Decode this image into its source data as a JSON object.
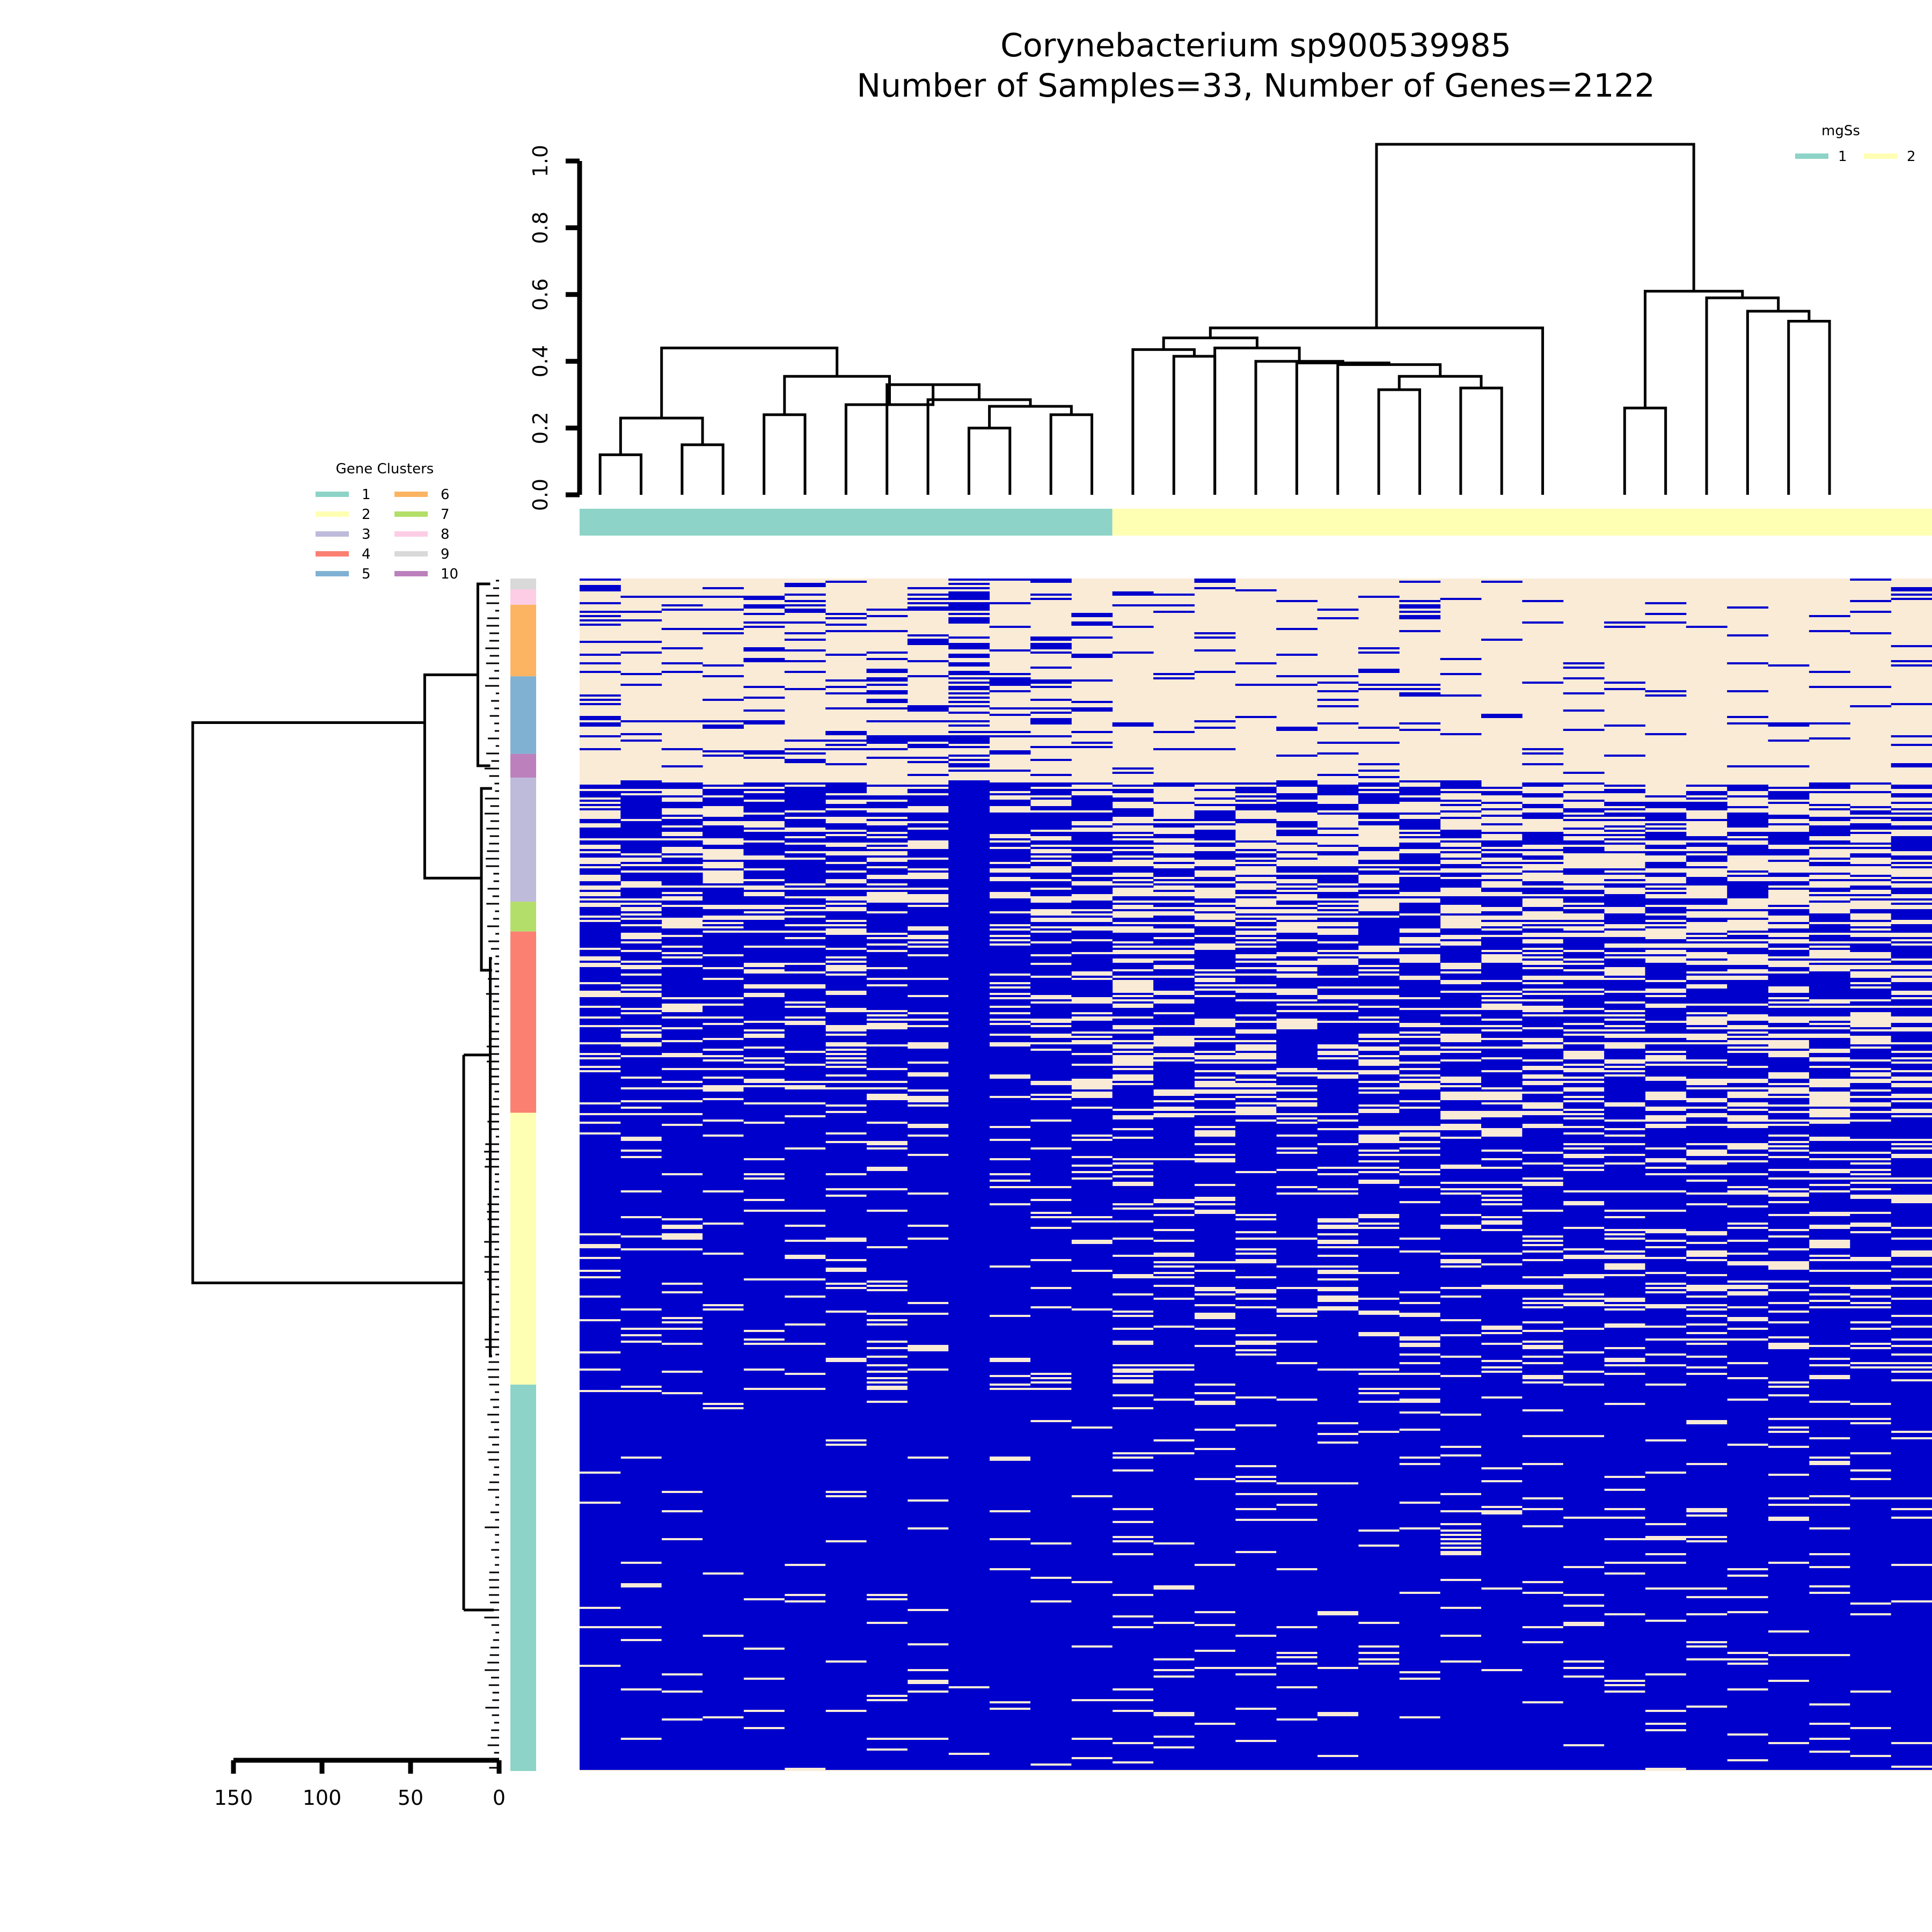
{
  "chart_data": {
    "type": "heatmap",
    "title": "Corynebacterium sp900539985",
    "subtitle": "Number of Samples=33, Number of Genes=2122",
    "colors": {
      "present": "#0000CD",
      "absent": "#FAEBD7",
      "line": "#000000"
    },
    "sample_dendrogram": {
      "axis_ticks": [
        "0.0",
        "0.2",
        "0.4",
        "0.6",
        "0.8",
        "1.0"
      ],
      "ylim": [
        0,
        1
      ],
      "root_height": 1.05,
      "nodes": [
        {
          "l": 0,
          "r": 1,
          "h": 0.12
        },
        {
          "l": 2,
          "r": 3,
          "h": 0.15
        },
        {
          "l": 33,
          "r": 34,
          "h": 0.23
        },
        {
          "l": 4,
          "r": 5,
          "h": 0.24
        },
        {
          "l": 9,
          "r": 10,
          "h": 0.2
        },
        {
          "l": 11,
          "r": 12,
          "h": 0.24
        },
        {
          "l": 37,
          "r": 38,
          "h": 0.265
        },
        {
          "l": 8,
          "r": 39,
          "h": 0.285
        },
        {
          "l": 7,
          "r": 40,
          "h": 0.33
        },
        {
          "l": 6,
          "r": 41,
          "h": 0.27
        },
        {
          "l": 36,
          "r": 42,
          "h": 0.355
        },
        {
          "l": 35,
          "r": 43,
          "h": 0.44
        },
        {
          "l": 19,
          "r": 20,
          "h": 0.315
        },
        {
          "l": 21,
          "r": 22,
          "h": 0.32
        },
        {
          "l": 45,
          "r": 46,
          "h": 0.355
        },
        {
          "l": 47,
          "r": 18,
          "h": 0.39
        },
        {
          "l": 48,
          "r": 17,
          "h": 0.395
        },
        {
          "l": 49,
          "r": 16,
          "h": 0.4
        },
        {
          "l": 15,
          "r": 50,
          "h": 0.44
        },
        {
          "l": 14,
          "r": 15.5,
          "h": 0.415
        },
        {
          "l": 13,
          "r": 52,
          "h": 0.435
        },
        {
          "l": 53,
          "r": 51,
          "h": 0.47
        },
        {
          "l": 54,
          "r": 23,
          "h": 0.5
        },
        {
          "l": 25,
          "r": 26,
          "h": 0.26
        },
        {
          "l": 29,
          "r": 30,
          "h": 0.52
        },
        {
          "l": 28,
          "r": 57,
          "h": 0.55
        },
        {
          "l": 27,
          "r": 58,
          "h": 0.59
        },
        {
          "l": 56,
          "r": 59,
          "h": 0.61
        },
        {
          "l": 55,
          "r": 60,
          "h": 1.05
        }
      ],
      "groups": [
        {
          "cluster": 1,
          "start": 0,
          "end": 13
        },
        {
          "cluster": 2,
          "start": 13,
          "end": 33
        }
      ]
    },
    "sample_legend": {
      "title": "mgSs",
      "labels": [
        "1",
        "2"
      ],
      "colors": [
        "#8DD3C7",
        "#FFFFB3"
      ]
    },
    "gene_dendrogram": {
      "axis_ticks": [
        "150",
        "100",
        "50",
        "0"
      ],
      "xlim": [
        0,
        150
      ],
      "root_height": 173,
      "main_split": [
        {
          "label": "top",
          "height": 42
        },
        {
          "label": "bottom",
          "height": 20
        }
      ]
    },
    "gene_legend": {
      "title": "Gene Clusters",
      "labels": [
        "1",
        "2",
        "3",
        "4",
        "5",
        "6",
        "7",
        "8",
        "9",
        "10"
      ],
      "colors": [
        "#8DD3C7",
        "#FFFFB3",
        "#BEBADA",
        "#FB8072",
        "#80B1D3",
        "#FDB462",
        "#B3DE69",
        "#FCCDE5",
        "#D9D9D9",
        "#BC80BD"
      ]
    },
    "gene_clusters": [
      {
        "cluster": 9,
        "fraction": 0.009
      },
      {
        "cluster": 8,
        "fraction": 0.013
      },
      {
        "cluster": 6,
        "fraction": 0.06
      },
      {
        "cluster": 5,
        "fraction": 0.065
      },
      {
        "cluster": 10,
        "fraction": 0.02
      },
      {
        "cluster": 3,
        "fraction": 0.104
      },
      {
        "cluster": 7,
        "fraction": 0.025
      },
      {
        "cluster": 4,
        "fraction": 0.152
      },
      {
        "cluster": 2,
        "fraction": 0.228
      },
      {
        "cluster": 1,
        "fraction": 0.324
      }
    ],
    "row_band_presence": [
      {
        "start": 0.0,
        "end": 0.17,
        "p": 0.15
      },
      {
        "start": 0.17,
        "end": 0.3,
        "p": 0.55
      },
      {
        "start": 0.3,
        "end": 0.45,
        "p": 0.7
      },
      {
        "start": 0.45,
        "end": 0.68,
        "p": 0.85
      },
      {
        "start": 0.68,
        "end": 1.0,
        "p": 0.95
      }
    ],
    "sample_presence_bias": [
      0.1,
      0.05,
      0.05,
      0.1,
      0.1,
      0.15,
      0.05,
      0.05,
      0.1,
      0.6,
      0.1,
      0.1,
      0.1,
      -0.1,
      -0.05,
      -0.1,
      -0.1,
      -0.05,
      -0.1,
      -0.1,
      -0.05,
      -0.15,
      -0.1,
      -0.15,
      -0.1,
      -0.1,
      -0.15,
      -0.2,
      -0.1,
      -0.15,
      -0.2,
      -0.15,
      -0.1
    ]
  }
}
